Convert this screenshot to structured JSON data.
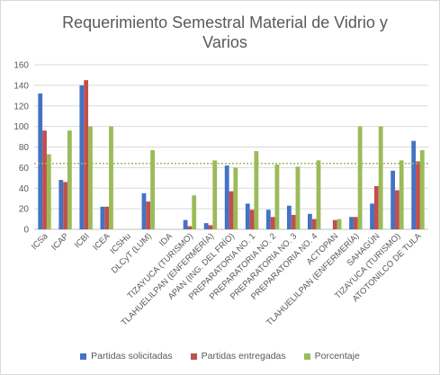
{
  "chart_data": {
    "type": "bar",
    "title": "Requerimiento Semestral Material de Vidrio y Varios",
    "xlabel": "",
    "ylabel": "",
    "ylim": [
      0,
      160
    ],
    "yticks": [
      0,
      20,
      40,
      60,
      80,
      100,
      120,
      140,
      160
    ],
    "grid": true,
    "legend_position": "bottom",
    "categories": [
      "ICSa",
      "ICAP",
      "ICBI",
      "ICEA",
      "ICSHu",
      "DLCyT (LUM)",
      "IDA",
      "TIZAYUCA (TURISMO)",
      "TLAHUELILPAN (ENFERMERÍA)",
      "APAN (ING. DEL FRÍO)",
      "PREPARATORIA NO. 1",
      "PREPARATORIA NO. 2",
      "PREPARATORIA NO. 3",
      "PREPARATORIA NO. 4",
      "ACTOPAN",
      "TLAHUELILPAN (ENFERMERÍA)",
      "SAHAGÚN",
      "TIZAYUCA (TURISMO)",
      "ATOTONILCO DE TULA"
    ],
    "series": [
      {
        "name": "Partidas solicitadas",
        "color": "#4472c4",
        "values": [
          132,
          48,
          140,
          22,
          0,
          35,
          0,
          9,
          6,
          62,
          25,
          19,
          23,
          15,
          0,
          12,
          25,
          57,
          86
        ]
      },
      {
        "name": "Partidas entregadas",
        "color": "#c0504d",
        "values": [
          96,
          46,
          145,
          22,
          0,
          27,
          0,
          3,
          4,
          37,
          19,
          12,
          14,
          10,
          9,
          12,
          42,
          38,
          66
        ]
      },
      {
        "name": "Porcentaje",
        "color": "#9bbb59",
        "values": [
          73,
          96,
          100,
          100,
          0,
          77,
          0,
          33,
          67,
          60,
          76,
          63,
          61,
          67,
          10,
          100,
          100,
          67,
          77
        ]
      }
    ],
    "trendline": {
      "color": "#9bbb59",
      "value": 64
    }
  }
}
